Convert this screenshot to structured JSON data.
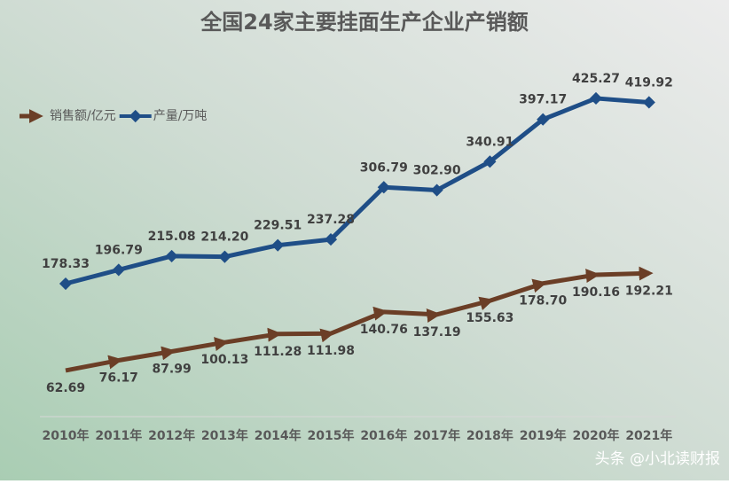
{
  "chart_data": {
    "type": "line",
    "title": "全国24家主要挂面生产企业产销额",
    "categories": [
      "2010年",
      "2011年",
      "2012年",
      "2013年",
      "2014年",
      "2015年",
      "2016年",
      "2017年",
      "2018年",
      "2019年",
      "2020年",
      "2021年"
    ],
    "series": [
      {
        "name": "销售额/亿元",
        "color": "#6b3e26",
        "marker": "arrow",
        "label_position": "below",
        "values": [
          62.69,
          76.17,
          87.99,
          100.13,
          111.28,
          111.98,
          140.76,
          137.19,
          155.63,
          178.7,
          190.16,
          192.21
        ],
        "value_labels": [
          "62.69",
          "76.17",
          "87.99",
          "100.13",
          "111.28",
          "111.98",
          "140.76",
          "137.19",
          "155.63",
          "178.70",
          "190.16",
          "192.21"
        ]
      },
      {
        "name": "产量/万吨",
        "color": "#1f4e87",
        "marker": "diamond",
        "label_position": "above",
        "values": [
          178.33,
          196.79,
          215.08,
          214.2,
          229.51,
          237.28,
          306.79,
          302.9,
          340.91,
          397.17,
          425.27,
          419.92
        ],
        "value_labels": [
          "178.33",
          "196.79",
          "215.08",
          "214.20",
          "229.51",
          "237.28",
          "306.79",
          "302.90",
          "340.91",
          "397.17",
          "425.27",
          "419.92"
        ]
      }
    ],
    "ylim": [
      0,
      450
    ],
    "legend": "top-left",
    "grid": false
  },
  "watermark": "头条 @小北读财报"
}
